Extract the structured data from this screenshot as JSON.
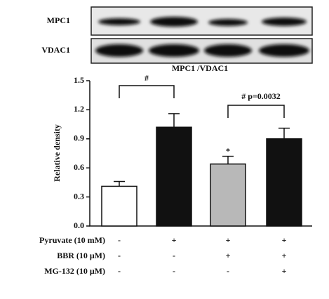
{
  "blot": {
    "rows": [
      "MPC1",
      "VDAC1"
    ]
  },
  "chart_data": {
    "type": "bar",
    "title": "MPC1 /VDAC1",
    "ylabel": "Relative density",
    "values": [
      0.41,
      1.02,
      0.64,
      0.9
    ],
    "errors": [
      0.05,
      0.14,
      0.08,
      0.11
    ],
    "colors": [
      "#ffffff",
      "#111111",
      "#b8b8b8",
      "#111111"
    ],
    "ylim": [
      0,
      1.5
    ],
    "yticks": [
      {
        "value": 0,
        "label": "0.0"
      },
      0.3,
      0.6,
      0.9,
      1.2,
      1.5
    ],
    "annotations": [
      "#",
      "# p=0.0032",
      "*"
    ],
    "treatments": [
      {
        "label": "Pyruvate (10 mM)",
        "marks": [
          "-",
          "+",
          "+",
          "+"
        ]
      },
      {
        "label": "BBR (10 μM)",
        "marks": [
          "-",
          "-",
          "+",
          "+"
        ]
      },
      {
        "label": "MG-132 (10 μM)",
        "marks": [
          "-",
          "-",
          "-",
          "+"
        ]
      }
    ]
  }
}
